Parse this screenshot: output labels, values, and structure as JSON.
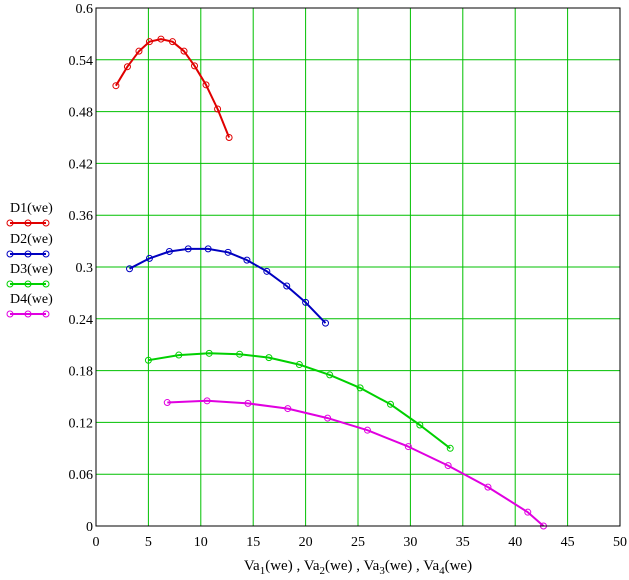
{
  "chart_data": {
    "type": "line",
    "xlabel": "Va1(we) , Va2(we) , Va3(we) , Va4(we)",
    "xlabel_parts": [
      {
        "base": "Va",
        "sub": "1",
        "tail": "(we) , "
      },
      {
        "base": "Va",
        "sub": "2",
        "tail": "(we) , "
      },
      {
        "base": "Va",
        "sub": "3",
        "tail": "(we) , "
      },
      {
        "base": "Va",
        "sub": "4",
        "tail": "(we)"
      }
    ],
    "ylabel": "",
    "xlim": [
      0,
      50
    ],
    "ylim": [
      0,
      0.6
    ],
    "xticks": [
      "0",
      "5",
      "10",
      "15",
      "20",
      "25",
      "30",
      "35",
      "40",
      "45",
      "50"
    ],
    "yticks": [
      "0",
      "0.06",
      "0.12",
      "0.18",
      "0.24",
      "0.3",
      "0.36",
      "0.42",
      "0.48",
      "0.54",
      "0.6"
    ],
    "grid": true,
    "legend_position": "left",
    "series": [
      {
        "name": "D1(we)",
        "color": "#e00000",
        "x": [
          1.9,
          3.0,
          4.1,
          5.1,
          6.2,
          7.3,
          8.4,
          9.4,
          10.5,
          11.6,
          12.7
        ],
        "y": [
          0.51,
          0.532,
          0.55,
          0.561,
          0.564,
          0.561,
          0.55,
          0.533,
          0.511,
          0.483,
          0.45
        ]
      },
      {
        "name": "D2(we)",
        "color": "#0000c0",
        "x": [
          3.2,
          5.1,
          7.0,
          8.8,
          10.7,
          12.6,
          14.4,
          16.3,
          18.2,
          20.0,
          21.9
        ],
        "y": [
          0.298,
          0.31,
          0.318,
          0.321,
          0.321,
          0.317,
          0.308,
          0.295,
          0.278,
          0.259,
          0.235
        ]
      },
      {
        "name": "D3(we)",
        "color": "#00d000",
        "x": [
          5.0,
          7.9,
          10.8,
          13.7,
          16.5,
          19.4,
          22.3,
          25.2,
          28.1,
          30.9,
          33.8
        ],
        "y": [
          0.192,
          0.198,
          0.2,
          0.199,
          0.195,
          0.187,
          0.175,
          0.16,
          0.141,
          0.117,
          0.09
        ]
      },
      {
        "name": "D4(we)",
        "color": "#e000e0",
        "x": [
          6.8,
          10.6,
          14.5,
          18.3,
          22.1,
          25.9,
          29.8,
          33.6,
          37.4,
          41.2,
          42.7
        ],
        "y": [
          0.143,
          0.145,
          0.142,
          0.136,
          0.125,
          0.111,
          0.092,
          0.07,
          0.045,
          0.016,
          0.0
        ]
      }
    ]
  }
}
